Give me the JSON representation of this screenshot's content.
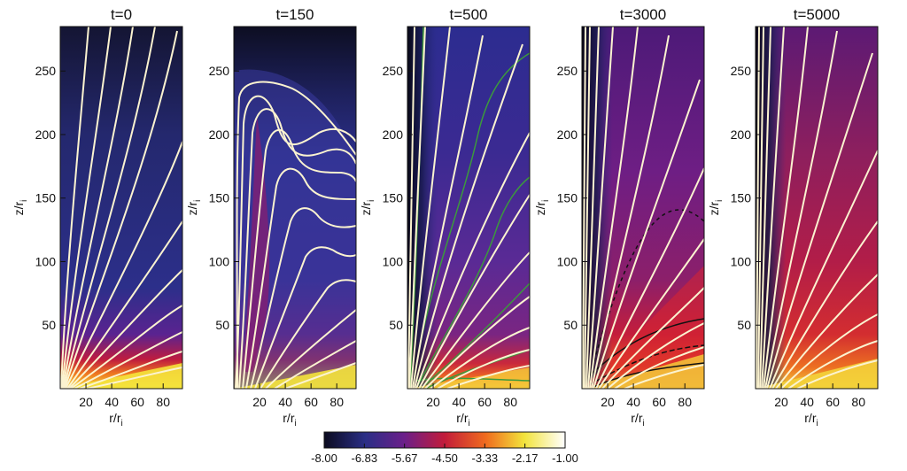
{
  "figure": {
    "panels": [
      {
        "title": "t=0"
      },
      {
        "title": "t=150"
      },
      {
        "title": "t=500"
      },
      {
        "title": "t=3000"
      },
      {
        "title": "t=5000"
      }
    ],
    "ylabel": "z/r",
    "ylabel_sub": "i",
    "xlabel": "r/r",
    "xlabel_sub": "i",
    "colorbar": {
      "ticks": [
        "-8.00",
        "-6.83",
        "-5.67",
        "-4.50",
        "-3.33",
        "-2.17",
        "-1.00"
      ],
      "colors": [
        "#0b0b1f",
        "#2a2e86",
        "#6a1f8a",
        "#c21c3a",
        "#f06b1e",
        "#f2e33b",
        "#ffffff"
      ]
    }
  },
  "chart_data": [
    {
      "type": "heatmap",
      "title": "t=0",
      "x": {
        "ticks": [
          20,
          40,
          60,
          80
        ],
        "lim": [
          0,
          95
        ]
      },
      "y": {
        "ticks": [
          50,
          100,
          150,
          200,
          250
        ],
        "lim": [
          0,
          285
        ]
      }
    },
    {
      "type": "heatmap",
      "title": "t=150",
      "x": {
        "ticks": [
          20,
          40,
          60,
          80
        ],
        "lim": [
          0,
          95
        ]
      },
      "y": {
        "ticks": [
          50,
          100,
          150,
          200,
          250
        ],
        "lim": [
          0,
          285
        ]
      }
    },
    {
      "type": "heatmap",
      "title": "t=500",
      "x": {
        "ticks": [
          20,
          40,
          60,
          80
        ],
        "lim": [
          0,
          95
        ]
      },
      "y": {
        "ticks": [
          50,
          100,
          150,
          200,
          250
        ],
        "lim": [
          0,
          285
        ]
      }
    },
    {
      "type": "heatmap",
      "title": "t=3000",
      "x": {
        "ticks": [
          20,
          40,
          60,
          80
        ],
        "lim": [
          0,
          95
        ]
      },
      "y": {
        "ticks": [
          50,
          100,
          150,
          200,
          250
        ],
        "lim": [
          0,
          285
        ]
      }
    },
    {
      "type": "heatmap",
      "title": "t=5000",
      "x": {
        "ticks": [
          20,
          40,
          60,
          80
        ],
        "lim": [
          0,
          95
        ]
      },
      "y": {
        "ticks": [
          50,
          100,
          150,
          200,
          250
        ],
        "lim": [
          0,
          285
        ]
      }
    }
  ]
}
